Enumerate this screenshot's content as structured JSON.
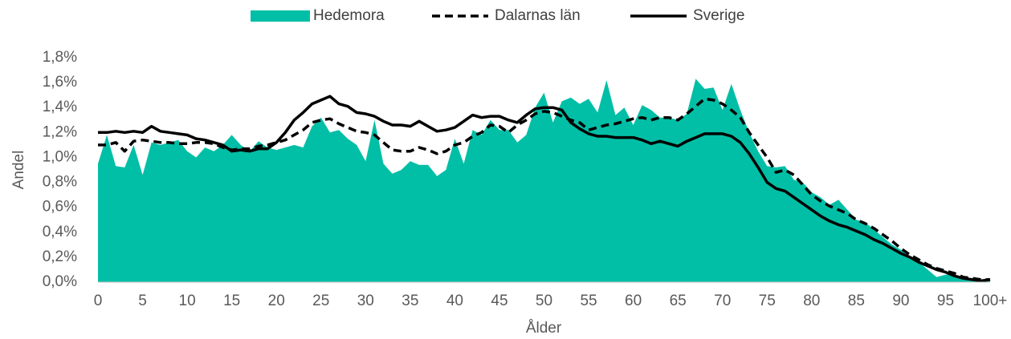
{
  "chart_data": {
    "type": "area_line",
    "x_label": "Ålder",
    "y_label": "Andel",
    "categories": [
      "0",
      null,
      null,
      null,
      null,
      "5",
      null,
      null,
      null,
      null,
      "10",
      null,
      null,
      null,
      null,
      "15",
      null,
      null,
      null,
      null,
      "20",
      null,
      null,
      null,
      null,
      "25",
      null,
      null,
      null,
      null,
      "30",
      null,
      null,
      null,
      null,
      "35",
      null,
      null,
      null,
      null,
      "40",
      null,
      null,
      null,
      null,
      "45",
      null,
      null,
      null,
      null,
      "50",
      null,
      null,
      null,
      null,
      "55",
      null,
      null,
      null,
      null,
      "60",
      null,
      null,
      null,
      null,
      "65",
      null,
      null,
      null,
      null,
      "70",
      null,
      null,
      null,
      null,
      "75",
      null,
      null,
      null,
      null,
      "80",
      null,
      null,
      null,
      null,
      "85",
      null,
      null,
      null,
      null,
      "90",
      null,
      null,
      null,
      null,
      "95",
      null,
      null,
      null,
      null,
      "100+"
    ],
    "ylim": [
      0,
      1.8
    ],
    "yticks": [
      {
        "value": 0,
        "label": "0,0%"
      },
      {
        "value": 0.2,
        "label": "0,2%"
      },
      {
        "value": 0.4,
        "label": "0,4%"
      },
      {
        "value": 0.6,
        "label": "0,6%"
      },
      {
        "value": 0.8,
        "label": "0,8%"
      },
      {
        "value": 1.0,
        "label": "1,0%"
      },
      {
        "value": 1.2,
        "label": "1,2%"
      },
      {
        "value": 1.4,
        "label": "1,4%"
      },
      {
        "value": 1.6,
        "label": "1,6%"
      },
      {
        "value": 1.8,
        "label": "1,8%"
      }
    ],
    "legend": "top",
    "series": [
      {
        "name": "Hedemora",
        "style": "area",
        "color": "#00bfa6",
        "values": [
          0.95,
          1.18,
          0.93,
          0.92,
          1.1,
          0.86,
          1.12,
          1.1,
          1.12,
          1.14,
          1.05,
          1.0,
          1.08,
          1.05,
          1.1,
          1.18,
          1.1,
          1.05,
          1.13,
          1.08,
          1.06,
          1.08,
          1.1,
          1.08,
          1.25,
          1.32,
          1.2,
          1.22,
          1.15,
          1.1,
          0.97,
          1.3,
          0.95,
          0.87,
          0.9,
          0.97,
          0.94,
          0.94,
          0.85,
          0.9,
          1.15,
          0.95,
          1.22,
          1.18,
          1.3,
          1.22,
          1.22,
          1.12,
          1.18,
          1.4,
          1.52,
          1.28,
          1.45,
          1.48,
          1.43,
          1.47,
          1.36,
          1.62,
          1.34,
          1.4,
          1.26,
          1.42,
          1.38,
          1.32,
          1.32,
          1.3,
          1.35,
          1.63,
          1.55,
          1.56,
          1.38,
          1.59,
          1.38,
          1.2,
          1.05,
          0.93,
          0.92,
          0.93,
          0.82,
          0.8,
          0.72,
          0.68,
          0.62,
          0.66,
          0.58,
          0.5,
          0.48,
          0.42,
          0.36,
          0.3,
          0.26,
          0.2,
          0.16,
          0.1,
          0.04,
          0.06,
          0.06,
          0.03,
          0.02,
          0.01,
          0.02
        ]
      },
      {
        "name": "Dalarnas län",
        "style": "dashed",
        "color": "#000000",
        "values": [
          1.1,
          1.1,
          1.12,
          1.05,
          1.13,
          1.14,
          1.13,
          1.12,
          1.12,
          1.11,
          1.11,
          1.12,
          1.12,
          1.11,
          1.08,
          1.06,
          1.07,
          1.07,
          1.09,
          1.1,
          1.12,
          1.14,
          1.18,
          1.22,
          1.28,
          1.3,
          1.31,
          1.27,
          1.24,
          1.21,
          1.2,
          1.18,
          1.12,
          1.06,
          1.05,
          1.05,
          1.08,
          1.06,
          1.03,
          1.05,
          1.1,
          1.12,
          1.17,
          1.2,
          1.26,
          1.25,
          1.2,
          1.26,
          1.3,
          1.35,
          1.37,
          1.36,
          1.33,
          1.3,
          1.28,
          1.22,
          1.24,
          1.26,
          1.27,
          1.29,
          1.31,
          1.32,
          1.3,
          1.32,
          1.32,
          1.3,
          1.35,
          1.41,
          1.47,
          1.46,
          1.43,
          1.38,
          1.32,
          1.2,
          1.1,
          1.0,
          0.88,
          0.9,
          0.86,
          0.78,
          0.7,
          0.65,
          0.61,
          0.58,
          0.55,
          0.5,
          0.47,
          0.43,
          0.38,
          0.33,
          0.27,
          0.22,
          0.18,
          0.14,
          0.11,
          0.09,
          0.07,
          0.04,
          0.03,
          0.02,
          0.02
        ]
      },
      {
        "name": "Sverige",
        "style": "solid",
        "color": "#000000",
        "values": [
          1.2,
          1.2,
          1.21,
          1.2,
          1.21,
          1.2,
          1.25,
          1.21,
          1.2,
          1.19,
          1.18,
          1.15,
          1.14,
          1.12,
          1.1,
          1.05,
          1.06,
          1.05,
          1.07,
          1.07,
          1.12,
          1.2,
          1.3,
          1.36,
          1.43,
          1.46,
          1.49,
          1.43,
          1.41,
          1.36,
          1.35,
          1.33,
          1.29,
          1.26,
          1.26,
          1.25,
          1.29,
          1.25,
          1.21,
          1.22,
          1.24,
          1.29,
          1.34,
          1.32,
          1.33,
          1.33,
          1.3,
          1.28,
          1.34,
          1.39,
          1.4,
          1.4,
          1.38,
          1.28,
          1.23,
          1.19,
          1.17,
          1.17,
          1.16,
          1.16,
          1.16,
          1.14,
          1.11,
          1.13,
          1.11,
          1.09,
          1.13,
          1.16,
          1.19,
          1.19,
          1.19,
          1.17,
          1.12,
          1.03,
          0.92,
          0.8,
          0.75,
          0.73,
          0.68,
          0.63,
          0.58,
          0.53,
          0.49,
          0.46,
          0.44,
          0.41,
          0.38,
          0.34,
          0.31,
          0.27,
          0.23,
          0.2,
          0.16,
          0.13,
          0.1,
          0.08,
          0.05,
          0.03,
          0.02,
          0.01,
          0.02
        ]
      }
    ]
  }
}
